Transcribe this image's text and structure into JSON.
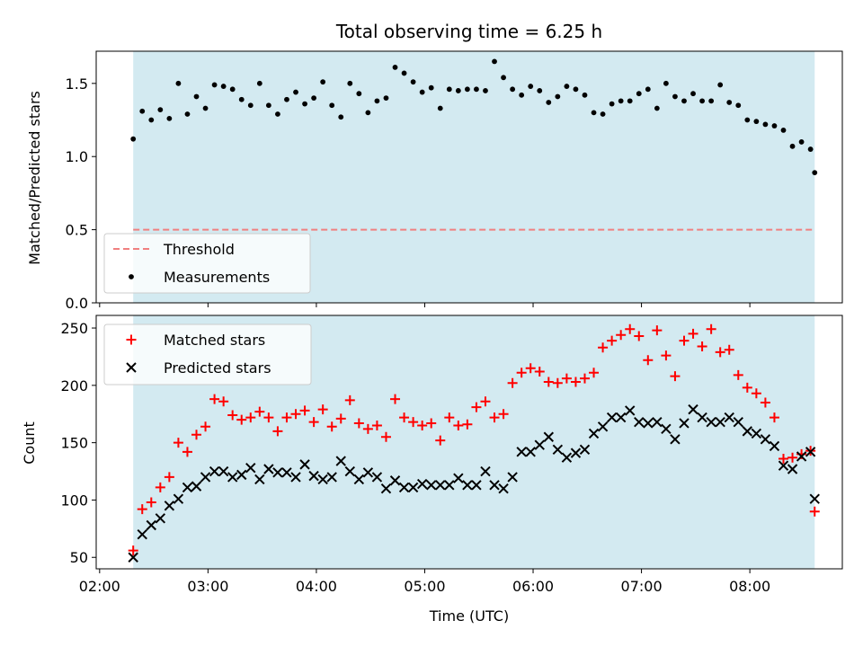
{
  "chart_data": {
    "type": "scatter",
    "title": "Total observing time = 6.25 h",
    "xlabel": "Time (UTC)",
    "x_tick_labels": [
      "02:00",
      "03:00",
      "04:00",
      "05:00",
      "06:00",
      "07:00",
      "08:00"
    ],
    "x_ticks_minutes": [
      120,
      180,
      240,
      300,
      360,
      420,
      480
    ],
    "xlim_minutes": [
      118.1,
      531.2
    ],
    "shaded_span_minutes": [
      138.6,
      515.9
    ],
    "shade_color": "#d3eaf1",
    "top": {
      "ylabel": "Matched/Predicted stars",
      "ylim": [
        0,
        1.72
      ],
      "y_ticks": [
        0.0,
        0.5,
        1.0,
        1.5
      ],
      "y_tick_labels": [
        "0.0",
        "0.5",
        "1.0",
        "1.5"
      ],
      "legend_position": "lower-left",
      "threshold": {
        "name": "Threshold",
        "value": 0.5,
        "color": "#f08080"
      },
      "measurements": {
        "name": "Measurements",
        "color": "#000000",
        "x": [
          138.6,
          143.6,
          148.6,
          153.6,
          158.6,
          163.6,
          168.6,
          173.6,
          178.6,
          183.6,
          188.6,
          193.6,
          198.6,
          203.6,
          208.6,
          213.6,
          218.6,
          223.6,
          228.6,
          233.6,
          238.6,
          243.6,
          248.6,
          253.6,
          258.6,
          263.6,
          268.6,
          273.6,
          278.6,
          283.6,
          288.6,
          293.6,
          298.6,
          303.6,
          308.6,
          313.6,
          318.6,
          323.6,
          328.6,
          333.6,
          338.6,
          343.6,
          348.6,
          353.6,
          358.6,
          363.6,
          368.6,
          373.6,
          378.6,
          383.6,
          388.6,
          393.6,
          398.6,
          403.6,
          408.6,
          413.6,
          418.6,
          423.6,
          428.6,
          433.6,
          438.6,
          443.6,
          448.6,
          453.6,
          458.6,
          463.6,
          468.6,
          473.6,
          478.6,
          483.6,
          488.6,
          493.6,
          498.6,
          503.6,
          508.6,
          513.6,
          515.9
        ],
        "y": [
          1.12,
          1.31,
          1.25,
          1.32,
          1.26,
          1.5,
          1.29,
          1.41,
          1.33,
          1.49,
          1.48,
          1.46,
          1.39,
          1.35,
          1.5,
          1.35,
          1.29,
          1.39,
          1.44,
          1.36,
          1.4,
          1.51,
          1.35,
          1.27,
          1.5,
          1.43,
          1.3,
          1.38,
          1.4,
          1.61,
          1.57,
          1.51,
          1.44,
          1.47,
          1.33,
          1.46,
          1.45,
          1.46,
          1.46,
          1.45,
          1.65,
          1.54,
          1.46,
          1.42,
          1.48,
          1.45,
          1.37,
          1.41,
          1.48,
          1.46,
          1.42,
          1.3,
          1.29,
          1.36,
          1.38,
          1.38,
          1.43,
          1.46,
          1.33,
          1.5,
          1.41,
          1.38,
          1.43,
          1.38,
          1.38,
          1.49,
          1.37,
          1.35,
          1.25,
          1.24,
          1.22,
          1.21,
          1.18,
          1.07,
          1.1,
          1.05,
          0.89
        ]
      }
    },
    "bottom": {
      "ylabel": "Count",
      "ylim": [
        40,
        261
      ],
      "y_ticks": [
        50,
        100,
        150,
        200,
        250
      ],
      "y_tick_labels": [
        "50",
        "100",
        "150",
        "200",
        "250"
      ],
      "legend_position": "upper-left",
      "series": [
        {
          "name": "Matched stars",
          "marker": "plus",
          "color": "#ff0000",
          "x": [
            138.6,
            143.6,
            148.6,
            153.6,
            158.6,
            163.6,
            168.6,
            173.6,
            178.6,
            183.6,
            188.6,
            193.6,
            198.6,
            203.6,
            208.6,
            213.6,
            218.6,
            223.6,
            228.6,
            233.6,
            238.6,
            243.6,
            248.6,
            253.6,
            258.6,
            263.6,
            268.6,
            273.6,
            278.6,
            283.6,
            288.6,
            293.6,
            298.6,
            303.6,
            308.6,
            313.6,
            318.6,
            323.6,
            328.6,
            333.6,
            338.6,
            343.6,
            348.6,
            353.6,
            358.6,
            363.6,
            368.6,
            373.6,
            378.6,
            383.6,
            388.6,
            393.6,
            398.6,
            403.6,
            408.6,
            413.6,
            418.6,
            423.6,
            428.6,
            433.6,
            438.6,
            443.6,
            448.6,
            453.6,
            458.6,
            463.6,
            468.6,
            473.6,
            478.6,
            483.6,
            488.6,
            493.6,
            498.6,
            503.6,
            508.6,
            513.6,
            515.9
          ],
          "y": [
            56,
            92,
            98,
            111,
            120,
            150,
            142,
            157,
            164,
            188,
            186,
            174,
            170,
            172,
            177,
            172,
            160,
            172,
            175,
            178,
            168,
            179,
            164,
            171,
            187,
            167,
            162,
            165,
            155,
            188,
            172,
            168,
            165,
            167,
            152,
            172,
            165,
            166,
            181,
            186,
            172,
            175,
            202,
            211,
            215,
            212,
            203,
            202,
            206,
            203,
            206,
            211,
            233,
            239,
            244,
            249,
            243,
            222,
            248,
            226,
            208,
            239,
            245,
            234,
            249,
            229,
            231,
            209,
            198,
            193,
            185,
            172,
            136,
            137,
            140,
            143,
            90
          ]
        },
        {
          "name": "Predicted stars",
          "marker": "x",
          "color": "#000000",
          "x": [
            138.6,
            143.6,
            148.6,
            153.6,
            158.6,
            163.6,
            168.6,
            173.6,
            178.6,
            183.6,
            188.6,
            193.6,
            198.6,
            203.6,
            208.6,
            213.6,
            218.6,
            223.6,
            228.6,
            233.6,
            238.6,
            243.6,
            248.6,
            253.6,
            258.6,
            263.6,
            268.6,
            273.6,
            278.6,
            283.6,
            288.6,
            293.6,
            298.6,
            303.6,
            308.6,
            313.6,
            318.6,
            323.6,
            328.6,
            333.6,
            338.6,
            343.6,
            348.6,
            353.6,
            358.6,
            363.6,
            368.6,
            373.6,
            378.6,
            383.6,
            388.6,
            393.6,
            398.6,
            403.6,
            408.6,
            413.6,
            418.6,
            423.6,
            428.6,
            433.6,
            438.6,
            443.6,
            448.6,
            453.6,
            458.6,
            463.6,
            468.6,
            473.6,
            478.6,
            483.6,
            488.6,
            493.6,
            498.6,
            503.6,
            508.6,
            513.6,
            515.9
          ],
          "y": [
            50,
            70,
            78,
            84,
            95,
            101,
            111,
            112,
            120,
            125,
            125,
            120,
            122,
            128,
            118,
            127,
            124,
            124,
            120,
            131,
            121,
            118,
            120,
            134,
            125,
            118,
            124,
            120,
            110,
            117,
            111,
            111,
            114,
            113,
            113,
            113,
            119,
            113,
            113,
            125,
            113,
            110,
            120,
            142,
            142,
            148,
            155,
            144,
            137,
            141,
            144,
            158,
            164,
            172,
            172,
            178,
            168,
            167,
            168,
            162,
            153,
            167,
            179,
            172,
            168,
            168,
            172,
            168,
            160,
            158,
            153,
            147,
            130,
            127,
            138,
            142,
            101
          ]
        }
      ]
    }
  }
}
